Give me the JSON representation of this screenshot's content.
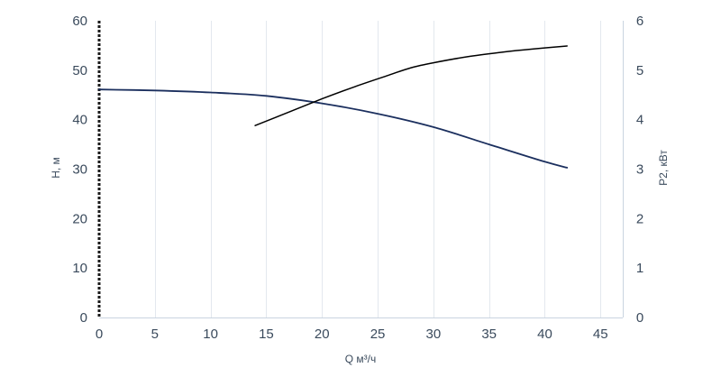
{
  "chart_data": {
    "type": "line",
    "xlabel": "Q м³/ч",
    "ylabel_left": "H, м",
    "ylabel_right": "P2, кВт",
    "xlim": [
      0,
      47
    ],
    "x_ticks": [
      0,
      5,
      10,
      15,
      20,
      25,
      30,
      35,
      40,
      45
    ],
    "ylim_left": [
      0,
      60
    ],
    "y_left_ticks": [
      0,
      10,
      20,
      30,
      40,
      50,
      60
    ],
    "ylim_right": [
      0,
      6
    ],
    "y_right_ticks": [
      0,
      1,
      2,
      3,
      4,
      5,
      6
    ],
    "grid": "vertical",
    "series": [
      {
        "axis": "left",
        "color": "#1b2f5e",
        "points": [
          [
            0,
            46.1
          ],
          [
            5,
            45.9
          ],
          [
            10,
            45.5
          ],
          [
            15,
            44.8
          ],
          [
            20,
            43.3
          ],
          [
            25,
            41.2
          ],
          [
            30,
            38.5
          ],
          [
            35,
            35.0
          ],
          [
            40,
            31.5
          ],
          [
            42,
            30.3
          ]
        ]
      },
      {
        "axis": "right",
        "color": "#000000",
        "points": [
          [
            14,
            3.88
          ],
          [
            17,
            4.15
          ],
          [
            20,
            4.42
          ],
          [
            23,
            4.67
          ],
          [
            26,
            4.9
          ],
          [
            28,
            5.05
          ],
          [
            30,
            5.15
          ],
          [
            33,
            5.27
          ],
          [
            36,
            5.36
          ],
          [
            39,
            5.43
          ],
          [
            42,
            5.49
          ]
        ]
      }
    ]
  }
}
